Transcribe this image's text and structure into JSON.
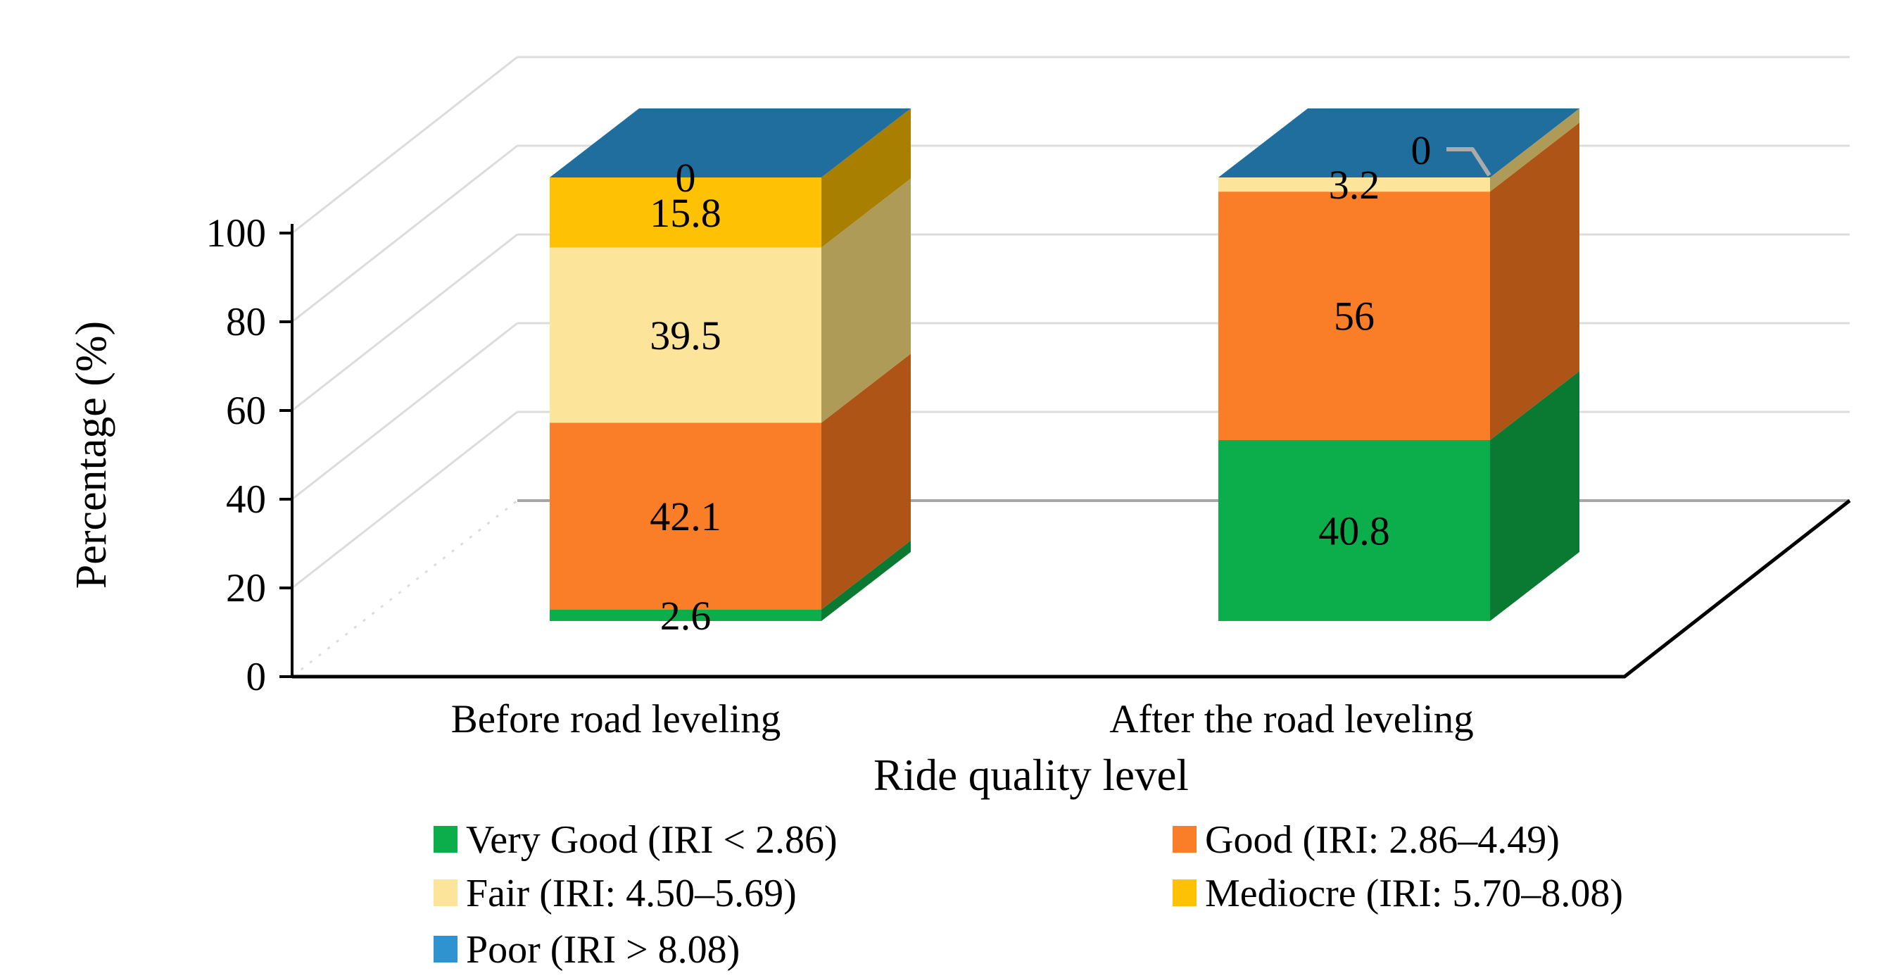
{
  "chart_data": {
    "type": "bar",
    "subtype": "3d-stacked-column",
    "title": "",
    "xlabel": "Ride quality level",
    "ylabel": "Percentage (%)",
    "ylim": [
      0,
      100
    ],
    "yticks": [
      0,
      20,
      40,
      60,
      80,
      100
    ],
    "grid": "horizontal-back-wall",
    "legend_position": "bottom two-column",
    "categories": [
      "Before road leveling",
      "After the road leveling"
    ],
    "series": [
      {
        "name": "Very Good (IRI < 2.86)",
        "color": "#0CAD4B",
        "side_color": "#0A7A33",
        "values": [
          2.6,
          40.8
        ],
        "data_labels": [
          "2.6",
          "40.8"
        ],
        "callout": [
          false,
          false
        ]
      },
      {
        "name": "Good (IRI: 2.86–4.49)",
        "color": "#F97E27",
        "side_color": "#AF5417",
        "values": [
          42.1,
          56
        ],
        "data_labels": [
          "42.1",
          "56"
        ],
        "callout": [
          false,
          false
        ]
      },
      {
        "name": "Fair (IRI: 4.50–5.69)",
        "color": "#FCE59A",
        "side_color": "#AE9B58",
        "values": [
          39.5,
          3.2
        ],
        "data_labels": [
          "39.5",
          "3.2"
        ],
        "callout": [
          false,
          false
        ]
      },
      {
        "name": "Mediocre (IRI: 5.70–8.08)",
        "color": "#FFC103",
        "side_color": "#A97F00",
        "values": [
          15.8,
          0
        ],
        "data_labels": [
          "15.8",
          "0"
        ],
        "callout": [
          false,
          true
        ]
      },
      {
        "name": "Poor (IRI > 8.08)",
        "color": "#2E93CF",
        "side_color": "#1F6E9D",
        "values": [
          0,
          0
        ],
        "data_labels": [
          "0",
          ""
        ],
        "callout": [
          false,
          false
        ]
      }
    ],
    "colors": {
      "gridline": "#DCDCDC",
      "zero_back_line": "#A6A6A6",
      "axis": "#000000",
      "floor_edge": "#000000",
      "callout_leader": "#ABABAB",
      "label_text": "#000000"
    }
  }
}
